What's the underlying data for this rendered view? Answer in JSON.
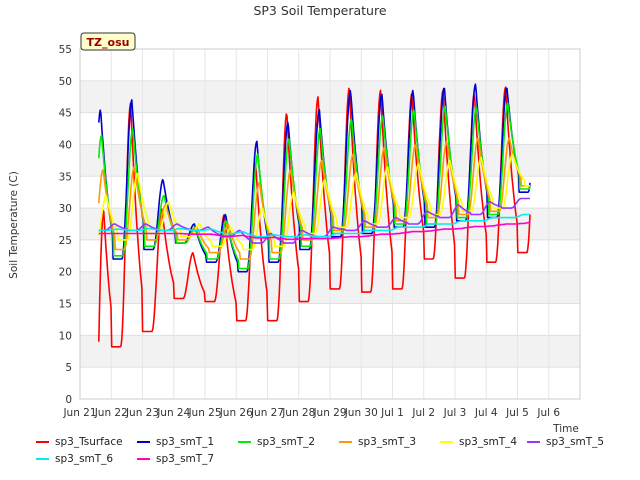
{
  "chart_data": {
    "type": "line",
    "title": "SP3 Soil Temperature",
    "xlabel": "Time",
    "ylabel": "Soil Temperature (C)",
    "ylim": [
      0,
      55
    ],
    "yticks": [
      0,
      5,
      10,
      15,
      20,
      25,
      30,
      35,
      40,
      45,
      50,
      55
    ],
    "xlim": [
      0,
      16
    ],
    "xticks": [
      {
        "x": 0,
        "label": "Jun 21"
      },
      {
        "x": 1,
        "label": "Jun 22"
      },
      {
        "x": 2,
        "label": "Jun 23"
      },
      {
        "x": 3,
        "label": "Jun 24"
      },
      {
        "x": 4,
        "label": "Jun 25"
      },
      {
        "x": 5,
        "label": "Jun 26"
      },
      {
        "x": 6,
        "label": "Jun 27"
      },
      {
        "x": 7,
        "label": "Jun 28"
      },
      {
        "x": 8,
        "label": "Jun 29"
      },
      {
        "x": 9,
        "label": "Jun 30"
      },
      {
        "x": 10,
        "label": "Jul 1"
      },
      {
        "x": 11,
        "label": "Jul 2"
      },
      {
        "x": 12,
        "label": "Jul 3"
      },
      {
        "x": 13,
        "label": "Jul 4"
      },
      {
        "x": 14,
        "label": "Jul 5"
      },
      {
        "x": 15,
        "label": "Jul 6"
      }
    ],
    "grid_bands": true,
    "site_label": "TZ_osu",
    "x_start": 0.6,
    "x_end": 14.4,
    "series": [
      {
        "name": "sp3_Tsurface",
        "color": "#ff0000",
        "daily_min": [
          5.8,
          8.2,
          10.6,
          15.8,
          15.3,
          12.3,
          12.3,
          15.3,
          17.3,
          16.8,
          17.3,
          22.0,
          19.0,
          21.5,
          23.0
        ],
        "daily_max": [
          43.5,
          46.5,
          30.0,
          23.0,
          29.0,
          37.0,
          45.0,
          47.5,
          49.0,
          48.5,
          48.0,
          48.5,
          48.0,
          49.0,
          50.0
        ],
        "lag": 0.0,
        "start": 9.0
      },
      {
        "name": "sp3_smT_1",
        "color": "#0000cc",
        "daily_min": [
          21.0,
          22.0,
          23.5,
          24.5,
          21.5,
          20.0,
          21.5,
          23.5,
          25.5,
          26.0,
          27.0,
          27.0,
          28.0,
          28.5,
          32.5
        ],
        "daily_max": [
          45.5,
          47.0,
          34.5,
          27.5,
          29.0,
          40.5,
          43.5,
          45.5,
          48.5,
          48.0,
          48.5,
          49.0,
          49.5,
          49.0,
          50.0
        ],
        "lag": 0.04
      },
      {
        "name": "sp3_smT_2",
        "color": "#00ee00",
        "daily_min": [
          21.5,
          22.5,
          24.0,
          24.5,
          22.0,
          20.5,
          22.0,
          24.0,
          26.0,
          26.5,
          27.5,
          27.5,
          28.5,
          29.0,
          33.0
        ],
        "daily_max": [
          41.5,
          42.5,
          32.0,
          27.0,
          28.0,
          38.5,
          41.0,
          42.5,
          44.0,
          44.5,
          45.5,
          46.0,
          46.0,
          46.5,
          47.0
        ],
        "lag": 0.07
      },
      {
        "name": "sp3_smT_3",
        "color": "#ff9900",
        "daily_min": [
          23.0,
          23.5,
          25.0,
          25.0,
          23.0,
          22.0,
          23.0,
          25.0,
          26.5,
          27.0,
          28.0,
          28.5,
          29.0,
          29.5,
          33.5
        ],
        "daily_max": [
          36.0,
          36.5,
          30.5,
          27.0,
          27.5,
          34.0,
          36.0,
          37.5,
          38.5,
          39.5,
          40.0,
          40.5,
          41.0,
          41.0,
          41.5
        ],
        "lag": 0.12
      },
      {
        "name": "sp3_smT_4",
        "color": "#ffff00",
        "daily_min": [
          24.5,
          25.0,
          26.0,
          25.5,
          24.0,
          23.5,
          24.0,
          26.0,
          27.0,
          27.5,
          28.5,
          29.0,
          29.5,
          30.0,
          33.5
        ],
        "daily_max": [
          32.0,
          35.5,
          31.0,
          27.5,
          27.0,
          30.0,
          32.5,
          34.5,
          35.5,
          36.5,
          37.0,
          37.5,
          38.0,
          38.5,
          39.0
        ],
        "lag": 0.22
      },
      {
        "name": "sp3_smT_5",
        "color": "#9933ff",
        "daily_min": [
          26.5,
          26.5,
          26.5,
          26.5,
          25.5,
          24.5,
          24.5,
          25.5,
          26.5,
          27.0,
          27.5,
          28.5,
          29.0,
          30.0,
          31.5
        ],
        "daily_max": [
          27.5,
          27.5,
          27.5,
          27.0,
          26.5,
          26.0,
          26.5,
          27.0,
          28.0,
          28.5,
          29.5,
          30.5,
          31.0,
          31.5,
          32.0
        ],
        "lag": 0.5
      },
      {
        "name": "sp3_smT_6",
        "color": "#00eeee",
        "daily_min": [
          26.5,
          26.5,
          26.5,
          26.5,
          26.0,
          25.5,
          25.5,
          25.5,
          26.0,
          26.5,
          27.0,
          27.5,
          28.0,
          28.5,
          29.0
        ],
        "daily_max": [
          26.7,
          26.8,
          26.8,
          26.7,
          26.3,
          25.8,
          25.8,
          26.0,
          26.5,
          27.0,
          27.5,
          28.0,
          28.5,
          29.0,
          29.3
        ],
        "lag": 0.6
      },
      {
        "name": "sp3_smT_7",
        "color": "#ff00cc",
        "daily_min": [
          26.0,
          26.0,
          26.0,
          25.9,
          25.6,
          25.3,
          25.1,
          25.2,
          25.5,
          25.9,
          26.3,
          26.7,
          27.1,
          27.5,
          27.9
        ],
        "daily_max": [
          26.0,
          26.0,
          26.0,
          25.9,
          25.7,
          25.4,
          25.2,
          25.3,
          25.6,
          26.0,
          26.4,
          26.8,
          27.2,
          27.6,
          28.0
        ],
        "lag": 0.6
      }
    ]
  },
  "legend": {
    "items": [
      {
        "label": "sp3_Tsurface",
        "color": "#ff0000"
      },
      {
        "label": "sp3_smT_1",
        "color": "#0000cc"
      },
      {
        "label": "sp3_smT_2",
        "color": "#00ee00"
      },
      {
        "label": "sp3_smT_3",
        "color": "#ff9900"
      },
      {
        "label": "sp3_smT_4",
        "color": "#ffff00"
      },
      {
        "label": "sp3_smT_5",
        "color": "#9933ff"
      },
      {
        "label": "sp3_smT_6",
        "color": "#00eeee"
      },
      {
        "label": "sp3_smT_7",
        "color": "#ff00cc"
      }
    ]
  }
}
